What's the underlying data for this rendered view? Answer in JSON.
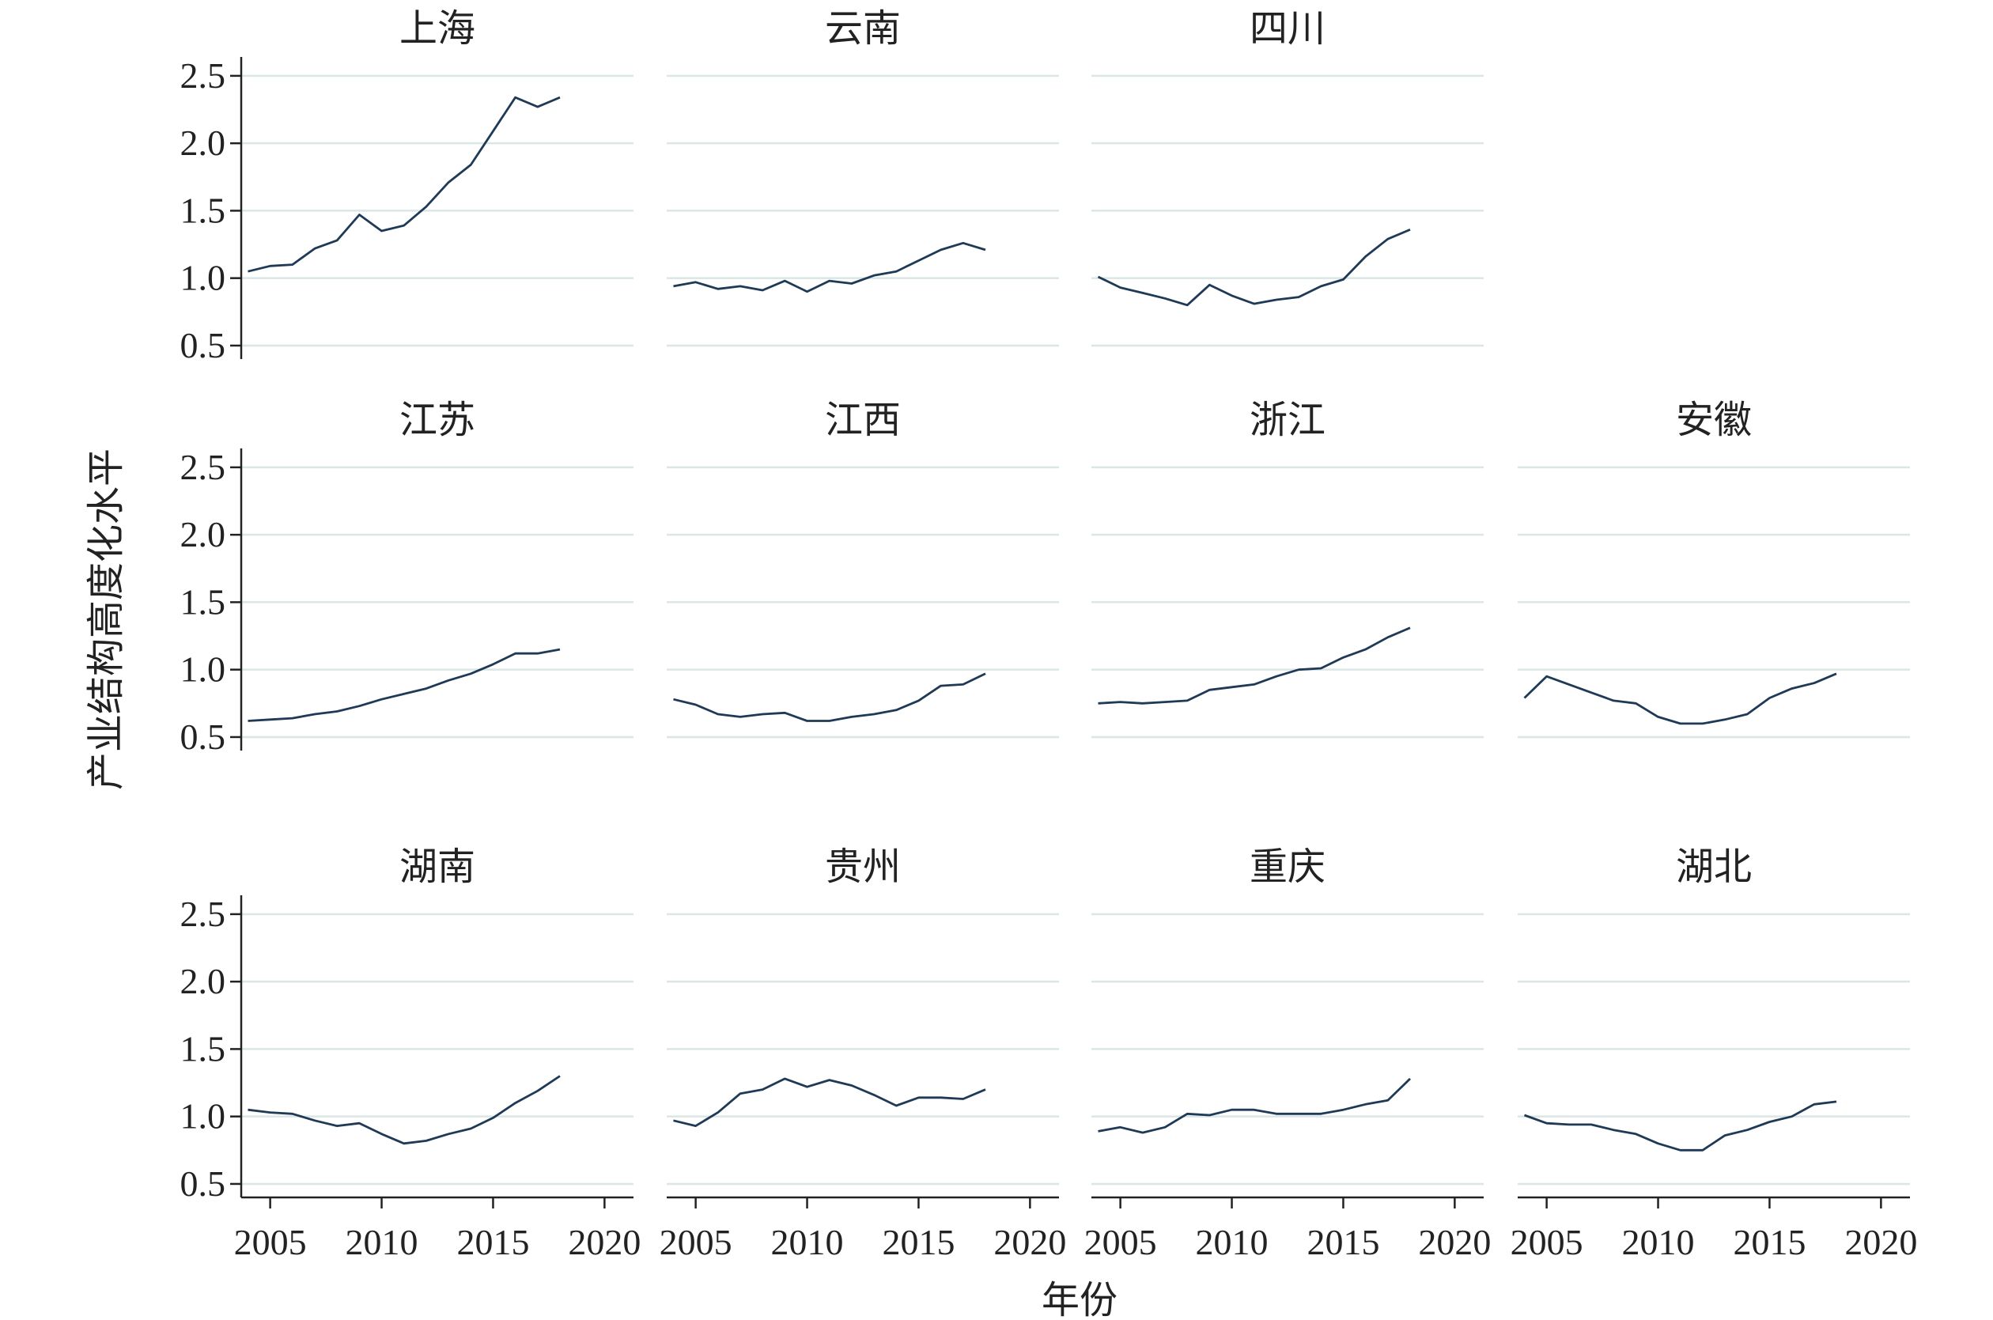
{
  "chart_data": {
    "type": "line",
    "ylabel": "产业结构高度化水平",
    "xlabel": "年份",
    "xlim": [
      2003.7,
      2021.3
    ],
    "ylim": [
      0.4,
      2.64
    ],
    "x_ticks": [
      2005,
      2010,
      2015,
      2020
    ],
    "y_ticks": [
      0.5,
      1.0,
      1.5,
      2.0,
      2.5
    ],
    "x_tick_labels": [
      "2005",
      "2010",
      "2015",
      "2020"
    ],
    "y_tick_labels": [
      "0.5",
      "1.0",
      "1.5",
      "2.0",
      "2.5"
    ],
    "grid": true,
    "colors": {
      "line": "#1f3a56",
      "grid": "#dbe6e6",
      "axis": "#222222"
    },
    "x": [
      2004,
      2005,
      2006,
      2007,
      2008,
      2009,
      2010,
      2011,
      2012,
      2013,
      2014,
      2015,
      2016,
      2017,
      2018
    ],
    "panels": [
      {
        "name": "上海",
        "values": [
          1.05,
          1.09,
          1.1,
          1.22,
          1.28,
          1.47,
          1.35,
          1.39,
          1.53,
          1.71,
          1.84,
          2.09,
          2.34,
          2.27,
          2.34
        ]
      },
      {
        "name": "云南",
        "values": [
          0.94,
          0.97,
          0.92,
          0.94,
          0.91,
          0.98,
          0.9,
          0.98,
          0.96,
          1.02,
          1.05,
          1.13,
          1.21,
          1.26,
          1.21
        ]
      },
      {
        "name": "四川",
        "values": [
          1.01,
          0.93,
          0.89,
          0.85,
          0.8,
          0.95,
          0.87,
          0.81,
          0.84,
          0.86,
          0.94,
          0.99,
          1.16,
          1.29,
          1.36
        ]
      },
      {
        "name": "江苏",
        "values": [
          0.62,
          0.63,
          0.64,
          0.67,
          0.69,
          0.73,
          0.78,
          0.82,
          0.86,
          0.92,
          0.97,
          1.04,
          1.12,
          1.12,
          1.15
        ]
      },
      {
        "name": "江西",
        "values": [
          0.78,
          0.74,
          0.67,
          0.65,
          0.67,
          0.68,
          0.62,
          0.62,
          0.65,
          0.67,
          0.7,
          0.77,
          0.88,
          0.89,
          0.97
        ]
      },
      {
        "name": "浙江",
        "values": [
          0.75,
          0.76,
          0.75,
          0.76,
          0.77,
          0.85,
          0.87,
          0.89,
          0.95,
          1.0,
          1.01,
          1.09,
          1.15,
          1.24,
          1.31
        ]
      },
      {
        "name": "安徽",
        "values": [
          0.79,
          0.95,
          0.89,
          0.83,
          0.77,
          0.75,
          0.65,
          0.6,
          0.6,
          0.63,
          0.67,
          0.79,
          0.86,
          0.9,
          0.97
        ]
      },
      {
        "name": "湖南",
        "values": [
          1.05,
          1.03,
          1.02,
          0.97,
          0.93,
          0.95,
          0.87,
          0.8,
          0.82,
          0.87,
          0.91,
          0.99,
          1.1,
          1.19,
          1.3
        ]
      },
      {
        "name": "贵州",
        "values": [
          0.97,
          0.93,
          1.03,
          1.17,
          1.2,
          1.28,
          1.22,
          1.27,
          1.23,
          1.16,
          1.08,
          1.14,
          1.14,
          1.13,
          1.2
        ]
      },
      {
        "name": "重庆",
        "values": [
          0.89,
          0.92,
          0.88,
          0.92,
          1.02,
          1.01,
          1.05,
          1.05,
          1.02,
          1.02,
          1.02,
          1.05,
          1.09,
          1.12,
          1.28
        ]
      },
      {
        "name": "湖北",
        "values": [
          1.01,
          0.95,
          0.94,
          0.94,
          0.9,
          0.87,
          0.8,
          0.75,
          0.75,
          0.86,
          0.9,
          0.96,
          1.0,
          1.09,
          1.11
        ]
      }
    ]
  }
}
